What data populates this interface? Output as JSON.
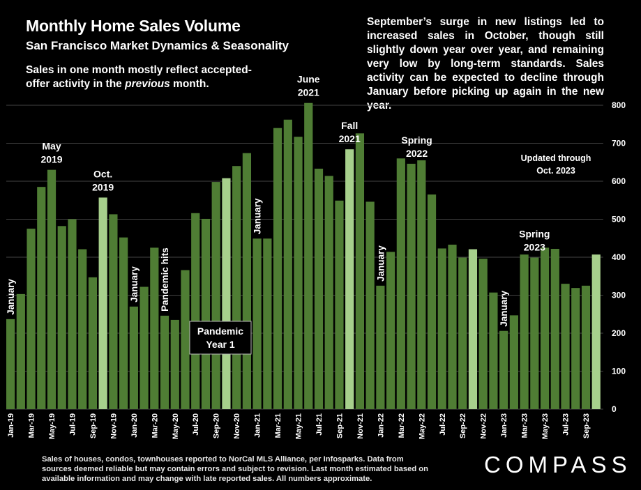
{
  "header": {
    "title": "Monthly Home Sales Volume",
    "subtitle": "San Francisco Market Dynamics & Seasonality",
    "note_left_a": "Sales in one month mostly reflect accepted-offer activity in the ",
    "note_left_em": "previous",
    "note_left_b": " month.",
    "note_right": "September’s surge in new listings led to increased sales in October, though still slightly down year over year, and remaining very low by long-term standards. Sales activity can be expected to decline through January before picking up again in the new year."
  },
  "footer": {
    "text": "Sales of houses, condos, townhouses reported to NorCal MLS Alliance, per Infosparks. Data from sources deemed reliable but may contain errors and subject to revision. Last month estimated based on available information and may change with late reported sales. All numbers approximate.",
    "logo": "COMPASS"
  },
  "colors": {
    "background": "#000000",
    "bar": "#4f7d34",
    "bar_highlight": "#a7d08c",
    "gridline": "#444444",
    "text": "#ffffff"
  },
  "chart_data": {
    "type": "bar",
    "ylim": [
      0,
      800
    ],
    "yticks": [
      0,
      100,
      200,
      300,
      400,
      500,
      600,
      700,
      800
    ],
    "y_axis_position": "right",
    "grid": true,
    "xtick_labels_every": 2,
    "categories": [
      "Jan-19",
      "Feb-19",
      "Mar-19",
      "Apr-19",
      "May-19",
      "Jun-19",
      "Jul-19",
      "Aug-19",
      "Sep-19",
      "Oct-19",
      "Nov-19",
      "Dec-19",
      "Jan-20",
      "Feb-20",
      "Mar-20",
      "Apr-20",
      "May-20",
      "Jun-20",
      "Jul-20",
      "Aug-20",
      "Sep-20",
      "Oct-20",
      "Nov-20",
      "Dec-20",
      "Jan-21",
      "Feb-21",
      "Mar-21",
      "Apr-21",
      "May-21",
      "Jun-21",
      "Jul-21",
      "Aug-21",
      "Sep-21",
      "Oct-21",
      "Nov-21",
      "Dec-21",
      "Jan-22",
      "Feb-22",
      "Mar-22",
      "Apr-22",
      "May-22",
      "Jun-22",
      "Jul-22",
      "Aug-22",
      "Sep-22",
      "Oct-22",
      "Nov-22",
      "Dec-22",
      "Jan-23",
      "Feb-23",
      "Mar-23",
      "Apr-23",
      "May-23",
      "Jun-23",
      "Jul-23",
      "Aug-23",
      "Sep-23",
      "Oct-23"
    ],
    "values": [
      237,
      303,
      475,
      585,
      630,
      482,
      500,
      421,
      347,
      557,
      513,
      452,
      270,
      322,
      425,
      246,
      235,
      366,
      516,
      501,
      598,
      608,
      640,
      674,
      449,
      449,
      740,
      762,
      717,
      806,
      633,
      614,
      549,
      684,
      726,
      546,
      325,
      414,
      660,
      646,
      655,
      565,
      423,
      433,
      399,
      421,
      396,
      307,
      206,
      247,
      407,
      399,
      425,
      422,
      330,
      319,
      325,
      407
    ],
    "highlight_indices": [
      9,
      21,
      33,
      45,
      57
    ],
    "annotations": [
      {
        "index": 0,
        "text": "January",
        "rotated": true
      },
      {
        "index": 4,
        "text": "May 2019",
        "lines": [
          "May",
          "2019"
        ]
      },
      {
        "index": 9,
        "text": "Oct. 2019",
        "lines": [
          "Oct.",
          "2019"
        ]
      },
      {
        "index": 12,
        "text": "January",
        "rotated": true
      },
      {
        "index": 15,
        "text": "Pandemic hits",
        "rotated": true
      },
      {
        "index": 24,
        "text": "January",
        "rotated": true
      },
      {
        "index": 29,
        "text": "June 2021",
        "lines": [
          "June",
          "2021"
        ]
      },
      {
        "index": 33,
        "text": "Fall 2021",
        "lines": [
          "Fall",
          "2021"
        ]
      },
      {
        "index": 36,
        "text": "January",
        "rotated": true
      },
      {
        "index": 39,
        "text": "Spring 2022",
        "lines": [
          "Spring",
          "2022"
        ]
      },
      {
        "index": 48,
        "text": "January",
        "rotated": true
      },
      {
        "index": 51,
        "text": "Spring 2023",
        "lines": [
          "Spring",
          "2023"
        ]
      }
    ],
    "pandemic_box": [
      "Pandemic",
      "Year 1"
    ],
    "updated_note": [
      "Updated through",
      "Oct. 2023"
    ]
  }
}
